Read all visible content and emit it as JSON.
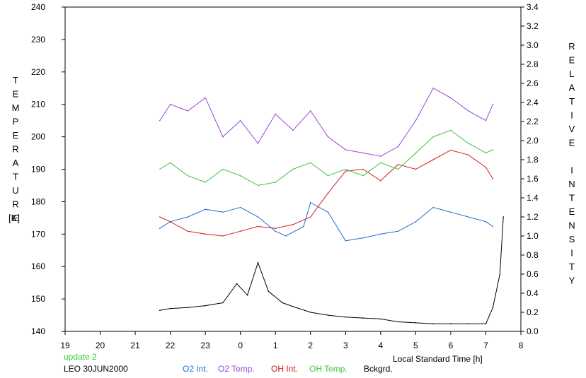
{
  "chart_data": {
    "type": "line",
    "xlabel": "Local Standard Time [h]",
    "ylabel_left": "TEMPERATURE",
    "ylabel_left_unit": "[K]",
    "ylabel_right": "RELATIVE INTENSITY",
    "x_ticks": [
      "19",
      "20",
      "21",
      "22",
      "23",
      "0",
      "1",
      "2",
      "3",
      "4",
      "5",
      "6",
      "7",
      "8"
    ],
    "xlim": [
      19,
      32
    ],
    "y_left_ticks": [
      "140",
      "150",
      "160",
      "170",
      "180",
      "190",
      "200",
      "210",
      "220",
      "230",
      "240"
    ],
    "y_left_lim": [
      140,
      240
    ],
    "y_right_ticks": [
      "0.0",
      "0.2",
      "0.4",
      "0.6",
      "0.8",
      "1.0",
      "1.2",
      "1.4",
      "1.6",
      "1.8",
      "2.0",
      "2.2",
      "2.4",
      "2.6",
      "2.8",
      "3.0",
      "3.2",
      "3.4"
    ],
    "y_right_lim": [
      0.0,
      3.4
    ],
    "grid": false,
    "legend_placement": "bottom",
    "status_text": "update 2",
    "station_text": "LEO 30JUN2000",
    "series": [
      {
        "name": "O2 Int.",
        "axis": "right",
        "color": "#1f6fd6",
        "x": [
          21.7,
          22.0,
          22.5,
          23.0,
          23.5,
          24.0,
          24.5,
          25.0,
          25.3,
          25.8,
          26.0,
          26.5,
          27.0,
          27.5,
          28.0,
          28.5,
          29.0,
          29.5,
          30.0,
          30.5,
          31.0,
          31.2
        ],
        "y": [
          1.08,
          1.15,
          1.2,
          1.28,
          1.25,
          1.3,
          1.2,
          1.05,
          1.0,
          1.1,
          1.35,
          1.25,
          0.95,
          0.98,
          1.02,
          1.05,
          1.15,
          1.3,
          1.25,
          1.2,
          1.15,
          1.1
        ]
      },
      {
        "name": "O2 Temp.",
        "axis": "left",
        "color": "#9a44d4",
        "x": [
          21.7,
          22.0,
          22.5,
          23.0,
          23.5,
          24.0,
          24.5,
          25.0,
          25.5,
          26.0,
          26.5,
          27.0,
          27.5,
          28.0,
          28.5,
          29.0,
          29.5,
          30.0,
          30.5,
          31.0,
          31.2
        ],
        "y": [
          205,
          210,
          208,
          212,
          200,
          205,
          198,
          207,
          202,
          208,
          200,
          196,
          195,
          194,
          197,
          205,
          215,
          212,
          208,
          205,
          210
        ]
      },
      {
        "name": "OH Int.",
        "axis": "right",
        "color": "#d41c1c",
        "x": [
          21.7,
          22.0,
          22.5,
          23.0,
          23.5,
          24.0,
          24.5,
          25.0,
          25.5,
          26.0,
          26.5,
          27.0,
          27.5,
          28.0,
          28.5,
          29.0,
          29.5,
          30.0,
          30.5,
          31.0,
          31.2
        ],
        "y": [
          1.2,
          1.15,
          1.05,
          1.02,
          1.0,
          1.05,
          1.1,
          1.08,
          1.12,
          1.2,
          1.45,
          1.68,
          1.7,
          1.58,
          1.75,
          1.7,
          1.8,
          1.9,
          1.85,
          1.72,
          1.6
        ]
      },
      {
        "name": "OH Temp.",
        "axis": "left",
        "color": "#3ec43e",
        "x": [
          21.7,
          22.0,
          22.5,
          23.0,
          23.5,
          24.0,
          24.5,
          25.0,
          25.5,
          26.0,
          26.5,
          27.0,
          27.5,
          28.0,
          28.5,
          29.0,
          29.5,
          30.0,
          30.5,
          31.0,
          31.2
        ],
        "y": [
          190,
          192,
          188,
          186,
          190,
          188,
          185,
          186,
          190,
          192,
          188,
          190,
          188,
          192,
          190,
          195,
          200,
          202,
          198,
          195,
          196
        ]
      },
      {
        "name": "Bckgrd.",
        "axis": "right",
        "color": "#000000",
        "x": [
          21.7,
          22.0,
          22.5,
          23.0,
          23.5,
          23.9,
          24.2,
          24.5,
          24.8,
          25.2,
          25.5,
          26.0,
          26.5,
          27.0,
          27.5,
          28.0,
          28.5,
          29.0,
          29.5,
          30.0,
          30.5,
          31.0,
          31.2,
          31.4,
          31.5
        ],
        "y": [
          0.22,
          0.24,
          0.25,
          0.27,
          0.3,
          0.5,
          0.38,
          0.72,
          0.42,
          0.3,
          0.26,
          0.2,
          0.17,
          0.15,
          0.14,
          0.13,
          0.1,
          0.09,
          0.08,
          0.08,
          0.08,
          0.08,
          0.25,
          0.6,
          1.2
        ]
      }
    ]
  }
}
